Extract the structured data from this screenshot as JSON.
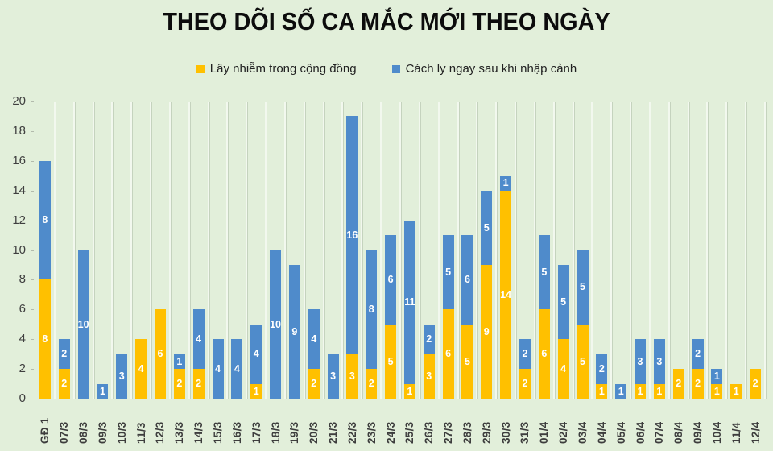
{
  "title": "THEO DÕI SỐ CA MẮC MỚI THEO NGÀY",
  "legend": {
    "items": [
      {
        "label": "Lây nhiễm trong cộng đồng",
        "color": "#FFC000"
      },
      {
        "label": "Cách ly ngay sau khi nhập cảnh",
        "color": "#4F8BCB"
      }
    ]
  },
  "chart_data": {
    "type": "bar",
    "stacked": true,
    "title": "THEO DÕI SỐ CA MẮC MỚI THEO NGÀY",
    "categories": [
      "GĐ 1",
      "07/3",
      "08/3",
      "09/3",
      "10/3",
      "11/3",
      "12/3",
      "13/3",
      "14/3",
      "15/3",
      "16/3",
      "17/3",
      "18/3",
      "19/3",
      "20/3",
      "21/3",
      "22/3",
      "23/3",
      "24/3",
      "25/3",
      "26/3",
      "27/3",
      "28/3",
      "29/3",
      "30/3",
      "31/3",
      "01/4",
      "02/4",
      "03/4",
      "04/4",
      "05/4",
      "06/4",
      "07/4",
      "08/4",
      "09/4",
      "10/4",
      "11/4",
      "12/4"
    ],
    "series": [
      {
        "name": "Lây nhiễm trong cộng đồng",
        "color": "#FFC000",
        "values": [
          8,
          2,
          0,
          0,
          0,
          4,
          6,
          2,
          2,
          0,
          0,
          1,
          0,
          0,
          2,
          0,
          3,
          2,
          5,
          1,
          3,
          6,
          5,
          9,
          14,
          2,
          6,
          4,
          5,
          1,
          0,
          1,
          1,
          2,
          2,
          1,
          1,
          2
        ]
      },
      {
        "name": "Cách ly ngay sau khi nhập cảnh",
        "color": "#4F8BCB",
        "values": [
          8,
          2,
          10,
          1,
          3,
          0,
          0,
          1,
          4,
          4,
          4,
          4,
          10,
          9,
          4,
          3,
          16,
          8,
          6,
          11,
          2,
          5,
          6,
          5,
          1,
          2,
          5,
          5,
          5,
          2,
          1,
          3,
          3,
          0,
          2,
          1,
          0,
          0
        ]
      }
    ],
    "xlabel": "",
    "ylabel": "",
    "ylim": [
      0,
      20
    ],
    "yticks": [
      0,
      2,
      4,
      6,
      8,
      10,
      12,
      14,
      16,
      18,
      20
    ],
    "grid": "vertical-category-gridlines",
    "legend_position": "top",
    "data_labels": true,
    "background": "#E2EFDA"
  }
}
